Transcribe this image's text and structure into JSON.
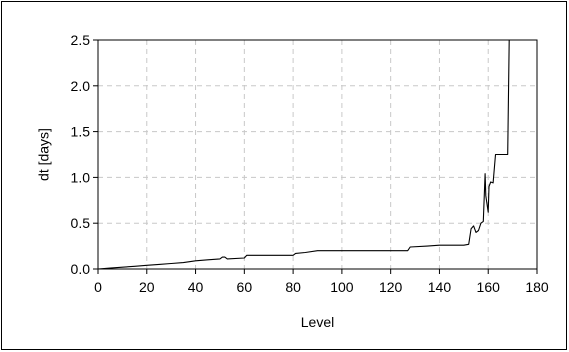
{
  "chart_data": {
    "type": "line",
    "title": "",
    "xlabel": "Level",
    "ylabel": "dt [days]",
    "xlim": [
      0,
      180
    ],
    "ylim": [
      0,
      2.5
    ],
    "xticks": [
      0,
      20,
      40,
      60,
      80,
      100,
      120,
      140,
      160,
      180
    ],
    "yticks": [
      0.0,
      0.5,
      1.0,
      1.5,
      2.0,
      2.5
    ],
    "ytick_labels": [
      "0.0",
      "0.5",
      "1.0",
      "1.5",
      "2.0",
      "2.5"
    ],
    "grid": true,
    "series": [
      {
        "color": "#000000",
        "x": [
          0,
          5,
          10,
          15,
          20,
          25,
          30,
          35,
          40,
          45,
          50,
          51,
          52,
          53,
          60,
          61,
          70,
          80,
          81,
          85,
          90,
          95,
          100,
          110,
          120,
          127,
          128,
          135,
          140,
          150,
          152,
          153,
          154,
          155,
          156,
          157,
          158,
          158.7,
          159,
          160,
          160.3,
          161,
          162,
          163,
          164,
          165,
          166,
          167,
          168,
          168.6,
          169,
          170
        ],
        "y": [
          0.0,
          0.01,
          0.02,
          0.03,
          0.04,
          0.05,
          0.06,
          0.07,
          0.09,
          0.1,
          0.11,
          0.13,
          0.13,
          0.11,
          0.12,
          0.15,
          0.15,
          0.15,
          0.17,
          0.18,
          0.2,
          0.2,
          0.2,
          0.2,
          0.2,
          0.2,
          0.24,
          0.25,
          0.26,
          0.26,
          0.27,
          0.44,
          0.47,
          0.4,
          0.42,
          0.5,
          0.52,
          1.04,
          0.8,
          0.62,
          0.9,
          0.95,
          0.94,
          1.25,
          1.25,
          1.25,
          1.25,
          1.25,
          1.25,
          2.5,
          2.5,
          2.5
        ]
      }
    ]
  }
}
